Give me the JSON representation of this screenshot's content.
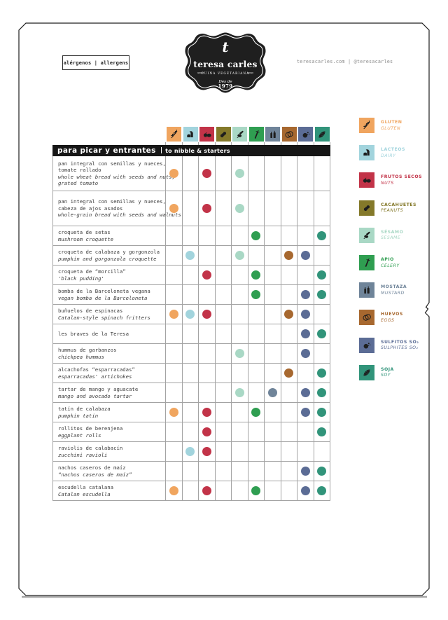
{
  "header": {
    "tag": "alérgenos | allergens",
    "website": "teresacarles.com | @teresacarles",
    "logo": {
      "monogram": "t",
      "name": "teresa carles",
      "tagline": "· CUINA VEGETARIANA ·",
      "since": "Des de",
      "year": "1979"
    }
  },
  "section": {
    "title_es": "para picar y entrantes",
    "divider": "|",
    "title_en": "to nibble & starters"
  },
  "allergens": [
    {
      "id": "gluten",
      "es": "GLUTEN",
      "en": "GLUTEN",
      "color": "#f0a55f",
      "icon": "wheat"
    },
    {
      "id": "dairy",
      "es": "LACTEOS",
      "en": "DAIRY",
      "color": "#a2d4dd",
      "icon": "milk"
    },
    {
      "id": "nuts",
      "es": "FRUTOS SECOS",
      "en": "NUTS",
      "color": "#c23348",
      "icon": "nuts"
    },
    {
      "id": "peanuts",
      "es": "CACAHUETES",
      "en": "PEANUTS",
      "color": "#84792a",
      "icon": "peanut"
    },
    {
      "id": "sesame",
      "es": "SÉSAMO",
      "en": "SESAME",
      "color": "#a9d8c5",
      "icon": "sesame"
    },
    {
      "id": "celery",
      "es": "APIO",
      "en": "CELERY",
      "color": "#2f9e51",
      "icon": "celery"
    },
    {
      "id": "mustard",
      "es": "MOSTAZA",
      "en": "MUSTARD",
      "color": "#6f8499",
      "icon": "mustard"
    },
    {
      "id": "eggs",
      "es": "HUEVOS",
      "en": "EGGS",
      "color": "#a7682f",
      "icon": "eggs"
    },
    {
      "id": "sulfites",
      "es": "SULFITOS SO₂",
      "en": "SULPHITES SO₂",
      "color": "#5b6c95",
      "icon": "sulfites"
    },
    {
      "id": "soy",
      "es": "SOJA",
      "en": "SOY",
      "color": "#31947a",
      "icon": "soy"
    }
  ],
  "table": {
    "rows": [
      {
        "es": [
          "pan integral con semillas y nueces,",
          "tomate rallado"
        ],
        "en": [
          "whole wheat bread with seeds and nuts,",
          "grated tomato"
        ],
        "dots": [
          0,
          2,
          4
        ]
      },
      {
        "es": [
          "pan integral con semillas y nueces,",
          "cabeza de ajos asados"
        ],
        "en": [
          "whole-grain bread with seeds and walnuts"
        ],
        "dots": [
          0,
          2,
          4
        ]
      },
      {
        "es": [
          "croqueta de setas"
        ],
        "en": [
          "mushroom croquette"
        ],
        "dots": [
          5,
          9
        ]
      },
      {
        "es": [
          "croqueta de calabaza y gorgonzola"
        ],
        "en": [
          "pumpkin and gorgonzola croquette"
        ],
        "dots": [
          1,
          4,
          7,
          8
        ]
      },
      {
        "es": [
          "croqueta de “morcilla”"
        ],
        "en": [
          "'black pudding'"
        ],
        "dots": [
          2,
          5,
          9
        ]
      },
      {
        "es": [
          "bomba de la Barceloneta vegana"
        ],
        "en": [
          "vegan bomba de la Barceloneta"
        ],
        "dots": [
          5,
          8,
          9
        ]
      },
      {
        "es": [
          "buñuelos de espinacas"
        ],
        "en": [
          "Catalan-style spinach fritters"
        ],
        "dots": [
          0,
          1,
          2,
          7,
          8
        ]
      },
      {
        "es": [
          "les braves de la Teresa"
        ],
        "en": [],
        "dots": [
          8,
          9
        ]
      },
      {
        "es": [
          "hummus de garbanzos"
        ],
        "en": [
          "chickpea hummus"
        ],
        "dots": [
          4,
          8
        ]
      },
      {
        "es": [
          "alcachofas “esparracadas”"
        ],
        "en": [
          "esparracadas' artichokes"
        ],
        "dots": [
          7,
          9
        ]
      },
      {
        "es": [
          "tartar de mango y aguacate"
        ],
        "en": [
          "mango and avocado tartar"
        ],
        "dots": [
          4,
          6,
          8,
          9
        ]
      },
      {
        "es": [
          "tatín de calabaza"
        ],
        "en": [
          "pumpkin tatin"
        ],
        "dots": [
          0,
          2,
          5,
          8,
          9
        ]
      },
      {
        "es": [
          "rollitos de berenjena"
        ],
        "en": [
          "eggplant rolls"
        ],
        "dots": [
          2,
          9
        ]
      },
      {
        "es": [
          "raviolis de calabacín"
        ],
        "en": [
          "zucchini ravioli"
        ],
        "dots": [
          1,
          2
        ]
      },
      {
        "es": [
          "nachos caseros de maíz"
        ],
        "en": [
          "“nachos caseros de maíz”"
        ],
        "dots": [
          8,
          9
        ]
      },
      {
        "es": [
          "escudella catalana"
        ],
        "en": [
          "Catalan escudella"
        ],
        "dots": [
          0,
          2,
          5,
          8,
          9
        ]
      }
    ]
  }
}
